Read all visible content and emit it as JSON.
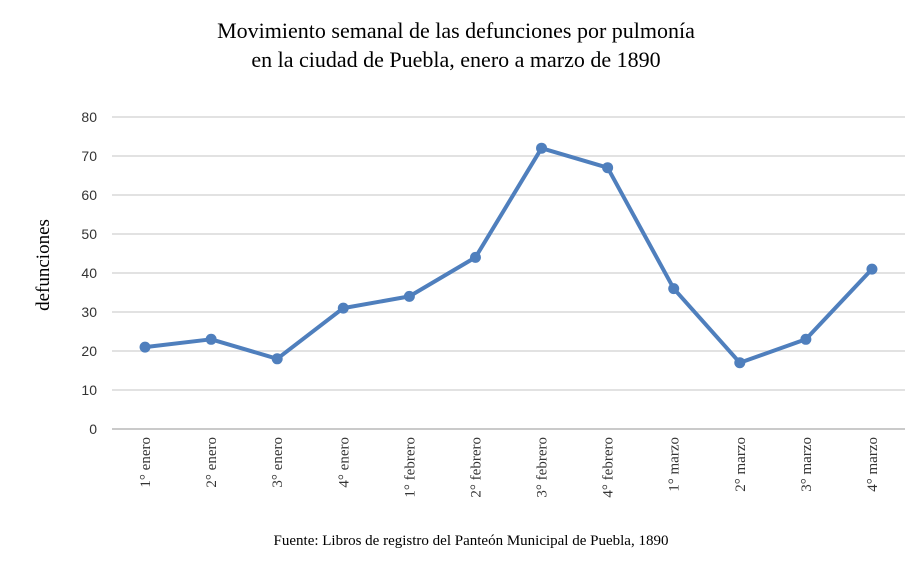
{
  "chart_data": {
    "type": "line",
    "title": [
      "Movimiento semanal de las defunciones por pulmonía",
      "en la ciudad de Puebla, enero a marzo de 1890"
    ],
    "y_label": "defunciones",
    "source": "Fuente: Libros de registro del Panteón Municipal de Puebla, 1890",
    "categories": [
      "1° enero",
      "2° enero",
      "3° enero",
      "4° enero",
      "1° febrero",
      "2° febrero",
      "3° febrero",
      "4° febrero",
      "1° marzo",
      "2° marzo",
      "3° marzo",
      "4° marzo"
    ],
    "values": [
      21,
      23,
      18,
      31,
      34,
      44,
      72,
      67,
      36,
      17,
      23,
      41
    ],
    "color": "#4f7fbd",
    "ylim": [
      0,
      80
    ],
    "yticks": [
      0,
      10,
      20,
      30,
      40,
      50,
      60,
      70,
      80
    ],
    "grid": true
  }
}
